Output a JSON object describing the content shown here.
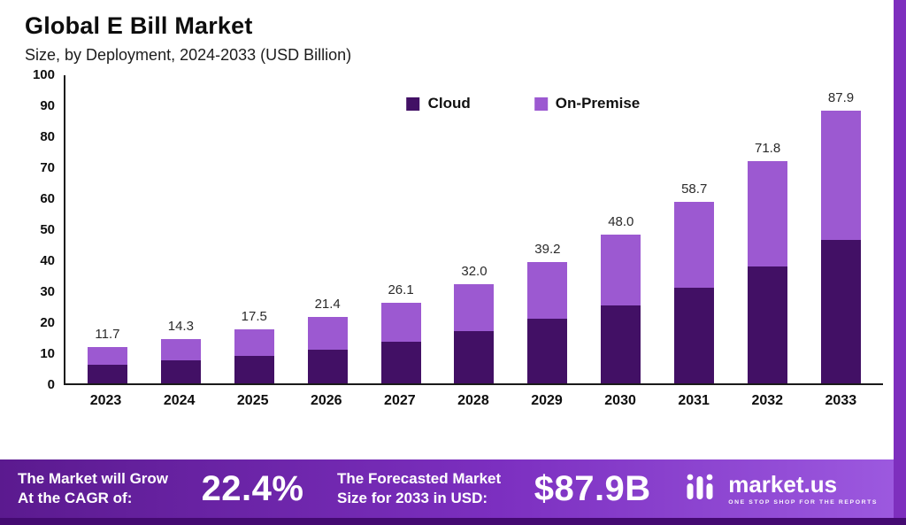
{
  "header": {
    "title": "Global E Bill Market",
    "subtitle": "Size, by Deployment, 2024-2033 (USD Billion)"
  },
  "chart_data": {
    "type": "bar",
    "stacked": true,
    "title": "Global E Bill Market Size, by Deployment, 2024-2033 (USD Billion)",
    "categories": [
      "2023",
      "2024",
      "2025",
      "2026",
      "2027",
      "2028",
      "2029",
      "2030",
      "2031",
      "2032",
      "2033"
    ],
    "series": [
      {
        "name": "Cloud",
        "color": "#421065",
        "values": [
          6.1,
          7.3,
          9.0,
          11.0,
          13.5,
          16.8,
          20.8,
          25.2,
          31.0,
          37.8,
          46.2
        ]
      },
      {
        "name": "On-Premise",
        "color": "#9c59d1",
        "values": [
          5.6,
          7.0,
          8.5,
          10.4,
          12.6,
          15.2,
          18.4,
          22.8,
          27.7,
          34.0,
          41.7
        ]
      }
    ],
    "totals": [
      11.7,
      14.3,
      17.5,
      21.4,
      26.1,
      32.0,
      39.2,
      48.0,
      58.7,
      71.8,
      87.9
    ],
    "total_labels": [
      "11.7",
      "14.3",
      "17.5",
      "21.4",
      "26.1",
      "32.0",
      "39.2",
      "48.0",
      "58.7",
      "71.8",
      "87.9"
    ],
    "xlabel": "",
    "ylabel": "",
    "ylim": [
      0,
      100
    ],
    "yticks": [
      0,
      10,
      20,
      30,
      40,
      50,
      60,
      70,
      80,
      90,
      100
    ],
    "grid": false,
    "legend_position": "top-center"
  },
  "footer": {
    "cagr_label_line1": "The Market will Grow",
    "cagr_label_line2": "At the CAGR of:",
    "cagr_value": "22.4%",
    "forecast_label_line1": "The Forecasted Market",
    "forecast_label_line2": "Size for 2033 in USD:",
    "forecast_value": "$87.9B",
    "brand": "market.us",
    "brand_tagline": "ONE STOP SHOP FOR THE REPORTS"
  },
  "colors": {
    "cloud": "#421065",
    "on_premise": "#9c59d1",
    "right_strip": "#7e2fbe",
    "bottom_strip": "#440a71",
    "banner_gradient_start": "#5b1a8f",
    "banner_gradient_end": "#9d5ae0"
  }
}
